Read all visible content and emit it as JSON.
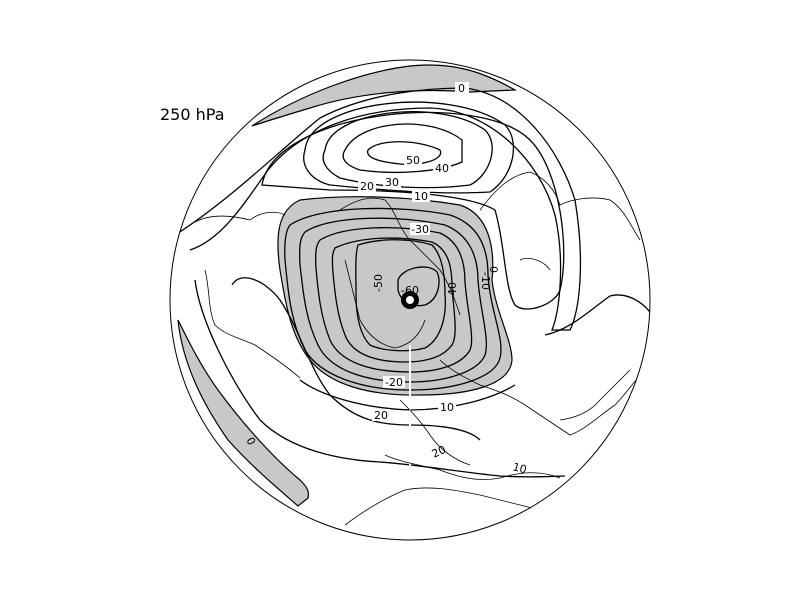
{
  "title": "250 hPa",
  "contour_labels": {
    "zero_top": "0",
    "fifty": "50",
    "forty": "40",
    "thirty": "30",
    "twenty_top": "20",
    "ten_top": "10",
    "minus30": "-30",
    "minus60": "-60",
    "minus50": "-50",
    "minus40": "-40",
    "minus10": "-10",
    "zero_right": "0",
    "minus20": "-20",
    "ten_bottom": "10",
    "twenty_bottom": "20",
    "twenty_lower": "20",
    "ten_lower": "10",
    "zero_left": "0"
  },
  "colors": {
    "shading": "#c8c8c8",
    "lines": "#000000",
    "background": "#ffffff"
  }
}
